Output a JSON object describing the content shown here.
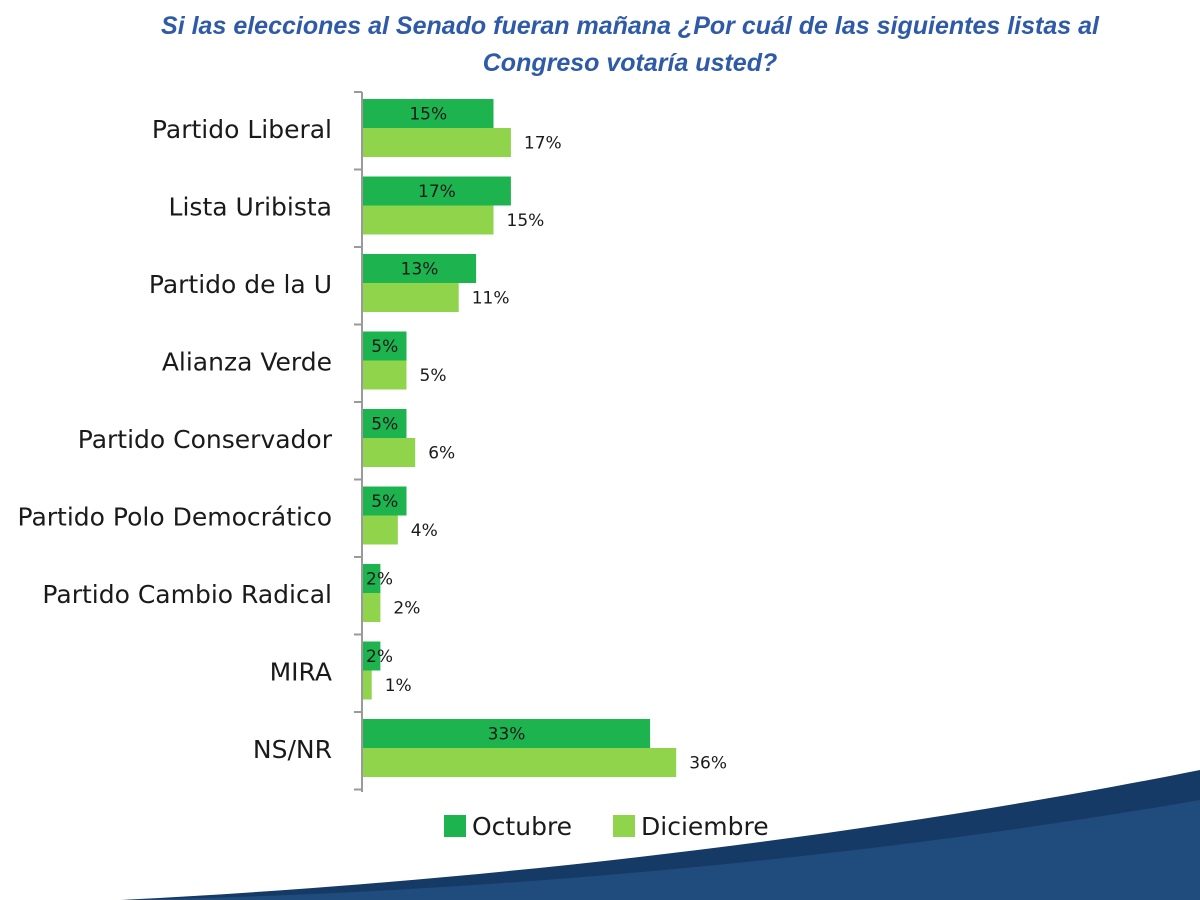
{
  "title": {
    "line1": "Si las elecciones al Senado fueran mañana ¿Por cuál de las siguientes listas al",
    "line2": "Congreso votaría usted?"
  },
  "colors": {
    "octubre": "#1db34f",
    "diciembre": "#8fd44a",
    "axis": "#9a9a9a",
    "title": "#2e5aa8",
    "wave": "#163a66"
  },
  "chart_data": {
    "type": "bar",
    "orientation": "horizontal",
    "categories": [
      "Partido Liberal",
      "Lista Uribista",
      "Partido de la U",
      "Alianza Verde",
      "Partido Conservador",
      "Partido Polo Democrático",
      "Partido Cambio Radical",
      "MIRA",
      "NS/NR"
    ],
    "series": [
      {
        "name": "Octubre",
        "values": [
          15,
          17,
          13,
          5,
          5,
          5,
          2,
          2,
          33
        ],
        "labels": [
          "15%",
          "17%",
          "13%",
          "5%",
          "5%",
          "5%",
          "2%",
          "2%",
          "33%"
        ]
      },
      {
        "name": "Diciembre",
        "values": [
          17,
          15,
          11,
          5,
          6,
          4,
          2,
          1,
          36
        ],
        "labels": [
          "17%",
          "15%",
          "11%",
          "5%",
          "6%",
          "4%",
          "2%",
          "1%",
          "36%"
        ]
      }
    ],
    "unit": "%",
    "xlim": [
      0,
      100
    ],
    "grid": false,
    "legend_position": "bottom"
  }
}
